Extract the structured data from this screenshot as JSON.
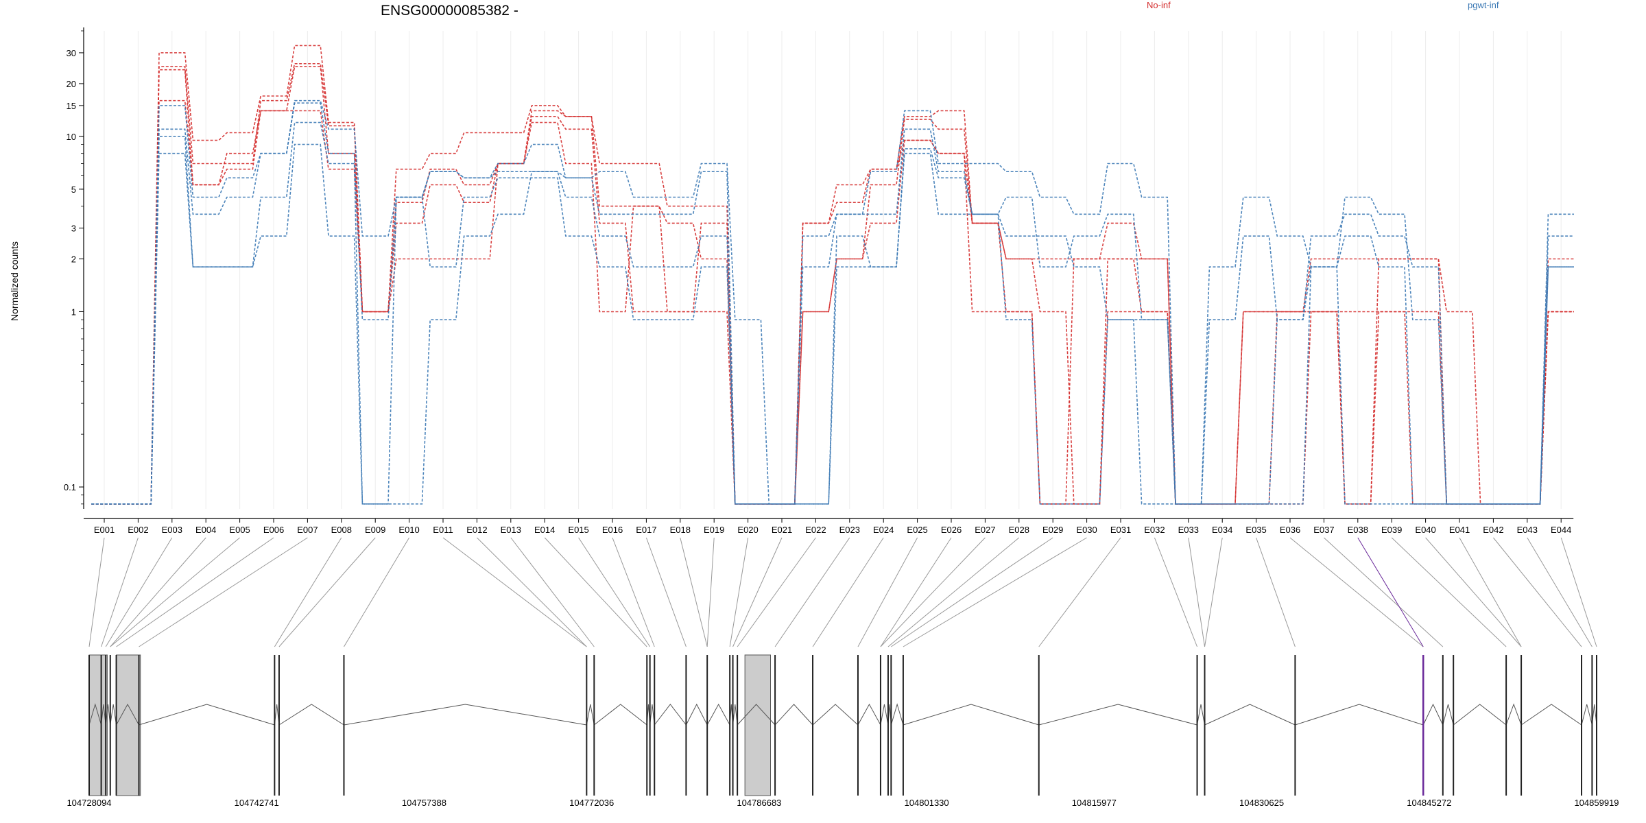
{
  "title": "ENSG00000085382 -",
  "ylabel": "Normalized counts",
  "legend": [
    {
      "label": "No-inf",
      "color": "#d42c2c"
    },
    {
      "label": "pgwt-inf",
      "color": "#3a78b4"
    }
  ],
  "chart_data": {
    "type": "line",
    "scale": "log",
    "title": "ENSG00000085382 -",
    "ylabel": "Normalized counts",
    "yticks": [
      "30",
      "20",
      "15",
      "10",
      "5",
      "3",
      "2",
      "1",
      "0.1"
    ],
    "ytick_values": [
      30,
      20,
      15,
      10,
      5,
      3,
      2,
      1,
      0.1
    ],
    "ylim": [
      0.075,
      40
    ],
    "grid": "vertical",
    "legend_position": "top",
    "categories": [
      "E001",
      "E002",
      "E003",
      "E004",
      "E005",
      "E006",
      "E007",
      "E008",
      "E009",
      "E010",
      "E011",
      "E012",
      "E013",
      "E014",
      "E015",
      "E016",
      "E017",
      "E018",
      "E019",
      "E020",
      "E021",
      "E022",
      "E023",
      "E024",
      "E025",
      "E026",
      "E027",
      "E028",
      "E029",
      "E030",
      "E031",
      "E032",
      "E033",
      "E034",
      "E035",
      "E036",
      "E037",
      "E038",
      "E039",
      "E040",
      "E041",
      "E042",
      "E043",
      "E044"
    ],
    "series": [
      {
        "group": "No-inf",
        "values": [
          0.08,
          0.08,
          30,
          9.5,
          10.5,
          17,
          33,
          12,
          1,
          6.5,
          8,
          10.5,
          10.5,
          15,
          13,
          7,
          7,
          4,
          4,
          0.08,
          0.08,
          3.2,
          5.3,
          6.5,
          13,
          14,
          3.2,
          2,
          1,
          0.08,
          2,
          2,
          0.08,
          0.08,
          1,
          1,
          2,
          2,
          2,
          2,
          0.08,
          0.08,
          0.08,
          2
        ]
      },
      {
        "group": "No-inf",
        "values": [
          0.08,
          0.08,
          25,
          7,
          7,
          16,
          26,
          11.5,
          1,
          4.2,
          6.5,
          5.3,
          7,
          14,
          13,
          4,
          4,
          1,
          1,
          0.08,
          0.08,
          1,
          2,
          5.3,
          12.5,
          11,
          3.2,
          1,
          0.08,
          0.08,
          1,
          1,
          0.08,
          0.08,
          0.08,
          1,
          1,
          0.08,
          1,
          1,
          0.08,
          0.08,
          0.08,
          1
        ]
      },
      {
        "group": "No-inf",
        "values": [
          0.08,
          0.08,
          24,
          5.3,
          8,
          14,
          25,
          8,
          1,
          3.2,
          5.3,
          4.2,
          7,
          13,
          11,
          3.2,
          1,
          1,
          3.2,
          0.08,
          0.08,
          3.2,
          4.2,
          6.5,
          9.5,
          8,
          3.2,
          2,
          2,
          2,
          3.2,
          2,
          0.08,
          0.08,
          1,
          1,
          1,
          0.08,
          2,
          2,
          1,
          0.08,
          0.08,
          1
        ]
      },
      {
        "group": "No-inf",
        "values": [
          0.08,
          0.08,
          16,
          5.3,
          6.5,
          14,
          14,
          6.5,
          1,
          2,
          2,
          2,
          7,
          12,
          7,
          1,
          4,
          3.2,
          2,
          0.08,
          0.08,
          1,
          2,
          3.2,
          9.5,
          8,
          1,
          1,
          0.08,
          2,
          2,
          1,
          0.08,
          0.08,
          0.08,
          0.08,
          1,
          1,
          1,
          0.08,
          0.08,
          0.08,
          0.08,
          1
        ]
      },
      {
        "group": "pgwt-inf",
        "values": [
          0.08,
          0.08,
          15,
          4.5,
          5.8,
          8,
          16,
          11,
          2.7,
          4.5,
          6.3,
          5.8,
          7,
          9,
          5.8,
          6.3,
          4.5,
          4.5,
          7,
          0.9,
          0.08,
          2.7,
          3.6,
          6.3,
          14,
          7,
          7,
          6.3,
          4.5,
          3.6,
          7,
          4.5,
          0.08,
          1.8,
          4.5,
          2.7,
          1.8,
          4.5,
          3.6,
          0.9,
          0.08,
          0.08,
          0.08,
          3.6
        ]
      },
      {
        "group": "pgwt-inf",
        "values": [
          0.08,
          0.08,
          11,
          3.6,
          4.5,
          8,
          15.5,
          8,
          0.9,
          4.5,
          6.3,
          5.8,
          6.3,
          6.3,
          5.8,
          3.6,
          3.6,
          3.6,
          6.3,
          0.08,
          0.08,
          1.8,
          3.6,
          3.6,
          11,
          6.3,
          3.6,
          4.5,
          1.8,
          2.7,
          3.6,
          0.9,
          0.08,
          0.9,
          2.7,
          0.9,
          2.7,
          3.6,
          2.7,
          1.8,
          0.08,
          0.08,
          0.08,
          2.7
        ]
      },
      {
        "group": "pgwt-inf",
        "values": [
          0.08,
          0.08,
          10,
          1.8,
          1.8,
          4.5,
          12,
          7,
          0.08,
          0.08,
          0.9,
          2.7,
          3.6,
          6.3,
          4.5,
          2.7,
          1.8,
          1.8,
          2.7,
          0.08,
          0.08,
          0.08,
          1.8,
          1.8,
          8,
          3.6,
          3.6,
          2.7,
          2.7,
          1.8,
          0.9,
          0.08,
          0.08,
          0.08,
          0.08,
          0.9,
          1.8,
          2.7,
          1.8,
          0.08,
          0.08,
          0.08,
          0.08,
          1.8
        ]
      },
      {
        "group": "pgwt-inf",
        "values": [
          0.08,
          0.08,
          8,
          1.8,
          1.8,
          2.7,
          9,
          2.7,
          0.08,
          4.5,
          1.8,
          4.5,
          5.8,
          5.8,
          2.7,
          1.8,
          0.9,
          0.9,
          1.8,
          0.08,
          0.08,
          0.08,
          2.7,
          1.8,
          8.5,
          5.8,
          3.6,
          0.9,
          0.08,
          0.08,
          0.9,
          0.9,
          0.08,
          0.08,
          0.08,
          0.08,
          1.8,
          0.08,
          0.08,
          0.08,
          0.08,
          0.08,
          0.08,
          1.8
        ]
      }
    ],
    "coordinate_ticks": [
      "104728094",
      "104742741",
      "104757388",
      "104772036",
      "104786683",
      "104801330",
      "104815977",
      "104830625",
      "104845272",
      "104859919"
    ]
  },
  "gene_model": {
    "exon_fractions": [
      0.0,
      0.008,
      0.011,
      0.014,
      0.018,
      0.033,
      0.123,
      0.126,
      0.169,
      0.33,
      0.335,
      0.37,
      0.372,
      0.375,
      0.396,
      0.41,
      0.425,
      0.427,
      0.43,
      0.455,
      0.48,
      0.51,
      0.525,
      0.53,
      0.532,
      0.54,
      0.63,
      0.735,
      0.74,
      0.8,
      0.885,
      0.898,
      0.905,
      0.94,
      0.95,
      0.99,
      0.997,
      1.0
    ],
    "highlighted_exon_fraction": 0.885,
    "highlight_color": "#6a2a9a"
  }
}
